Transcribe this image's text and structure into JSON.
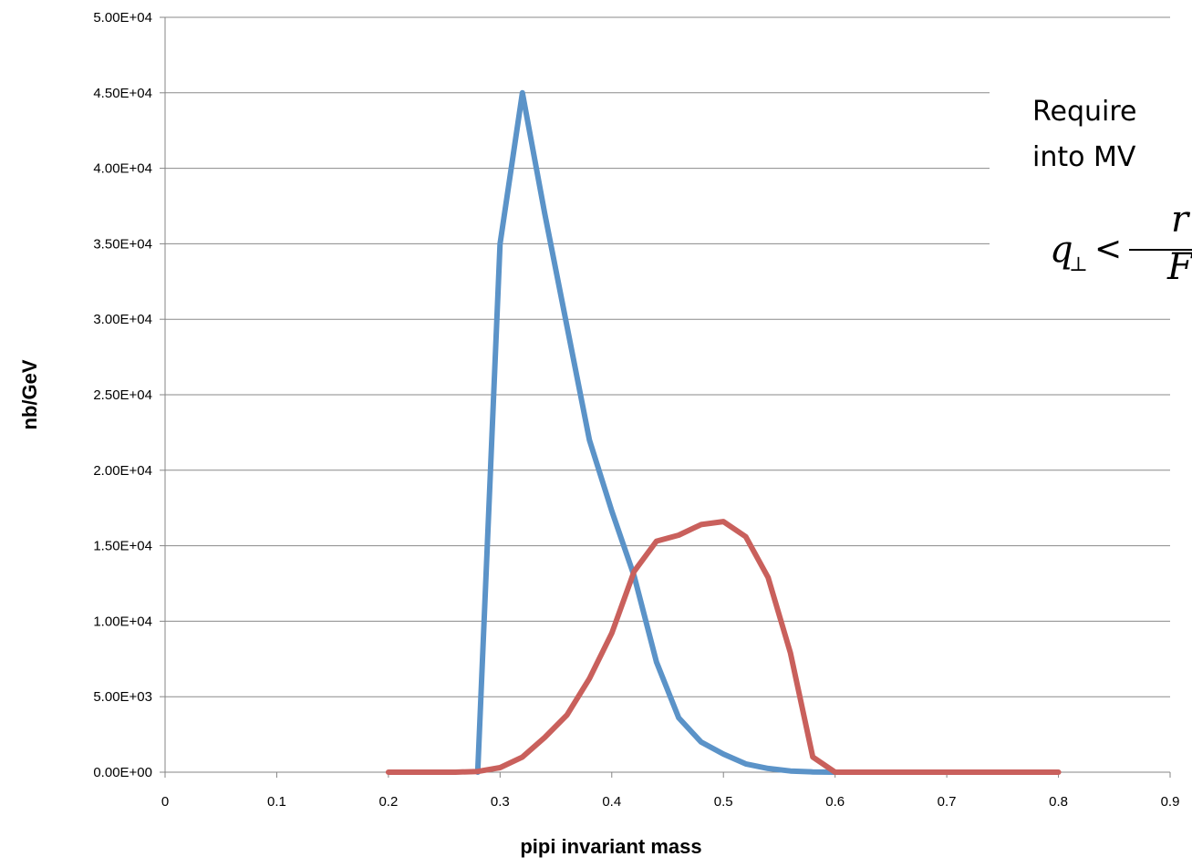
{
  "chart_data": {
    "type": "line",
    "title": "",
    "xlabel": "pipi invariant mass",
    "ylabel": "nb/GeV",
    "xlim": [
      0,
      0.9
    ],
    "ylim": [
      0,
      50000
    ],
    "x_ticks": [
      "0",
      "0.1",
      "0.2",
      "0.3",
      "0.4",
      "0.5",
      "0.6",
      "0.7",
      "0.8",
      "0.9"
    ],
    "y_ticks": [
      "0.00E+00",
      "5.00E+03",
      "1.00E+04",
      "1.50E+04",
      "2.00E+04",
      "2.50E+04",
      "3.00E+04",
      "3.50E+04",
      "4.00E+04",
      "4.50E+04",
      "5.00E+04"
    ],
    "grid": "horizontal",
    "legend": "none",
    "series": [
      {
        "color": "#5B93C8",
        "x": [
          0.28,
          0.3,
          0.32,
          0.34,
          0.36,
          0.38,
          0.4,
          0.42,
          0.44,
          0.46,
          0.48,
          0.5,
          0.52,
          0.54,
          0.56,
          0.58,
          0.6
        ],
        "y": [
          0,
          35000,
          45000,
          37000,
          29500,
          22000,
          17300,
          13000,
          7300,
          3600,
          2000,
          1200,
          550,
          250,
          80,
          20,
          0
        ]
      },
      {
        "color": "#C9605C",
        "x": [
          0.2,
          0.22,
          0.24,
          0.26,
          0.28,
          0.3,
          0.32,
          0.34,
          0.36,
          0.38,
          0.4,
          0.42,
          0.44,
          0.46,
          0.48,
          0.5,
          0.52,
          0.54,
          0.56,
          0.58,
          0.6,
          0.62,
          0.64,
          0.66,
          0.68,
          0.7,
          0.72,
          0.74,
          0.76,
          0.78,
          0.8
        ],
        "y": [
          0,
          0,
          0,
          0,
          50,
          300,
          1000,
          2300,
          3800,
          6200,
          9200,
          13300,
          15300,
          15700,
          16400,
          16600,
          15600,
          12900,
          7900,
          1000,
          0,
          0,
          0,
          0,
          0,
          0,
          0,
          0,
          0,
          0,
          0
        ]
      }
    ]
  },
  "annotation": {
    "line1": "Require",
    "line2": "into MV",
    "math_q": "q",
    "math_sub": "⊥",
    "math_lt": "<",
    "math_num": "r",
    "math_den": "F"
  }
}
